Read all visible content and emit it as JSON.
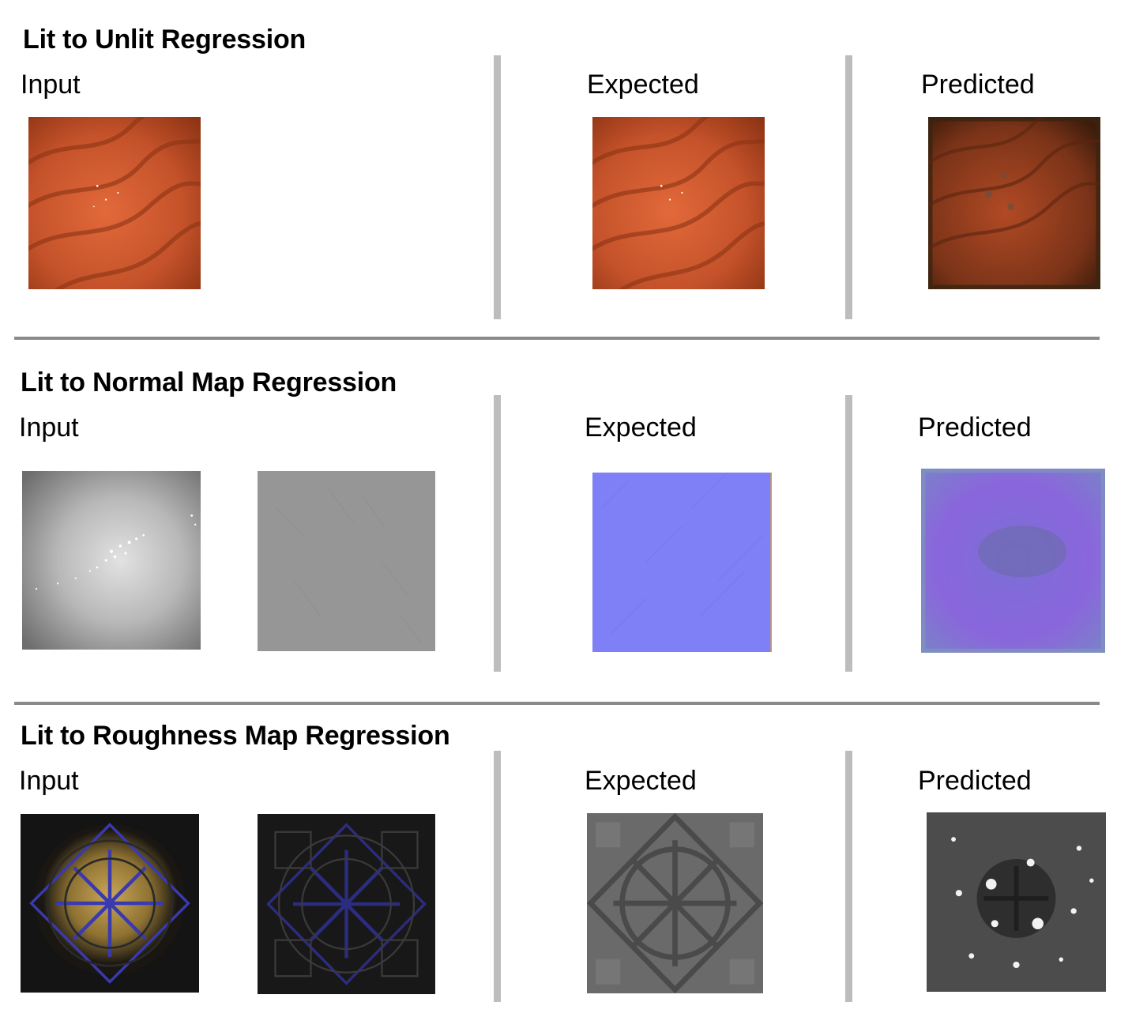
{
  "sections": [
    {
      "title": "Lit to Unlit Regression",
      "labels": {
        "input": "Input",
        "expected": "Expected",
        "predicted": "Predicted"
      },
      "images": {
        "input": "orange-wavy-surface",
        "expected": "orange-wavy-surface",
        "predicted": "dark-orange-wavy-surface"
      }
    },
    {
      "title": "Lit to Normal Map Regression",
      "labels": {
        "input": "Input",
        "expected": "Expected",
        "predicted": "Predicted"
      },
      "images": {
        "input_lit": "gray-lit-surface-with-specular-highlight",
        "input_flat": "gray-flat-surface",
        "expected": "blue-normal-map",
        "predicted": "purple-normal-map-prediction"
      }
    },
    {
      "title": "Lit to Roughness Map Regression",
      "labels": {
        "input": "Input",
        "expected": "Expected",
        "predicted": "Predicted"
      },
      "images": {
        "input_lit": "golden-star-pattern-lit",
        "input_dark": "dark-star-pattern",
        "expected": "gray-star-pattern-roughness",
        "predicted": "noisy-gray-roughness-prediction"
      }
    }
  ],
  "colors": {
    "divider": "#8a8a8a",
    "column_separator": "#bdbdbd",
    "orange": "#c2542a",
    "normal_blue": "#7f80f6",
    "normal_purple": "#8a6ad9"
  }
}
